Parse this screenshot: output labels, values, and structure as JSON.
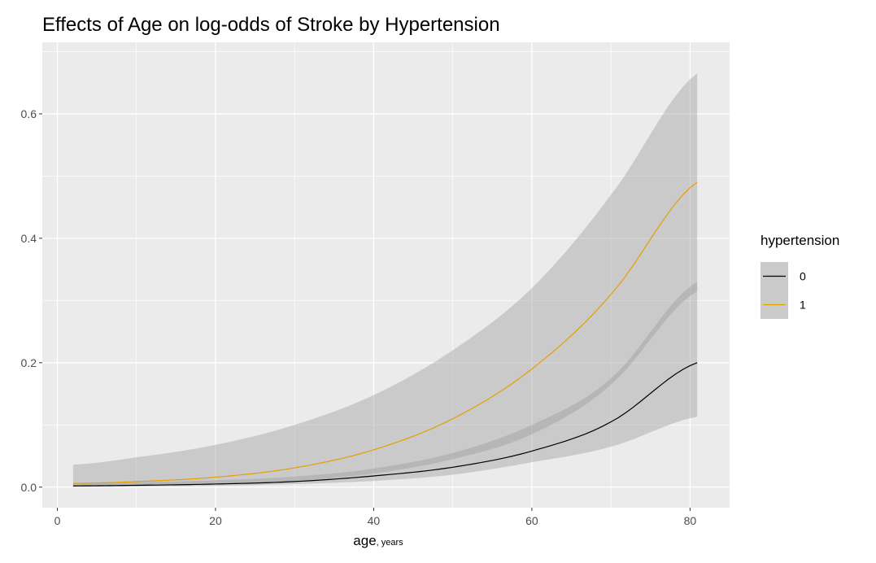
{
  "chart_data": {
    "type": "line",
    "title": "Effects of Age on log-odds of Stroke by Hypertension",
    "xlabel": "age",
    "xlabel_unit": ", years",
    "ylabel": "",
    "xlim": [
      -1.9,
      85
    ],
    "ylim": [
      -0.033,
      0.715
    ],
    "x_ticks": [
      0,
      20,
      40,
      60,
      80
    ],
    "y_ticks": [
      0.0,
      0.2,
      0.4,
      0.6
    ],
    "x_tick_labels": [
      "0",
      "20",
      "40",
      "60",
      "80"
    ],
    "y_tick_labels": [
      "0.0",
      "0.2",
      "0.4",
      "0.6"
    ],
    "grid": true,
    "legend": {
      "title": "hypertension",
      "position": "right"
    },
    "x": [
      2,
      10,
      20,
      30,
      40,
      50,
      60,
      70,
      80.9
    ],
    "series": [
      {
        "name": "0",
        "color": "#000000",
        "values": [
          0.002,
          0.003,
          0.005,
          0.009,
          0.018,
          0.032,
          0.058,
          0.105,
          0.2
        ],
        "lower": [
          0.0005,
          0.001,
          0.002,
          0.005,
          0.01,
          0.02,
          0.04,
          0.065,
          0.113
        ],
        "upper": [
          0.006,
          0.008,
          0.011,
          0.017,
          0.03,
          0.055,
          0.1,
          0.175,
          0.33
        ]
      },
      {
        "name": "1",
        "color": "#E69F00",
        "values": [
          0.006,
          0.009,
          0.016,
          0.031,
          0.06,
          0.11,
          0.19,
          0.31,
          0.49
        ],
        "lower": [
          0.001,
          0.002,
          0.005,
          0.01,
          0.022,
          0.045,
          0.085,
          0.165,
          0.315
        ],
        "upper": [
          0.036,
          0.048,
          0.068,
          0.1,
          0.148,
          0.22,
          0.32,
          0.47,
          0.665
        ]
      }
    ],
    "colors": {
      "panel": "#EBEBEB",
      "grid": "#FFFFFF",
      "ribbon": "#999999"
    }
  }
}
